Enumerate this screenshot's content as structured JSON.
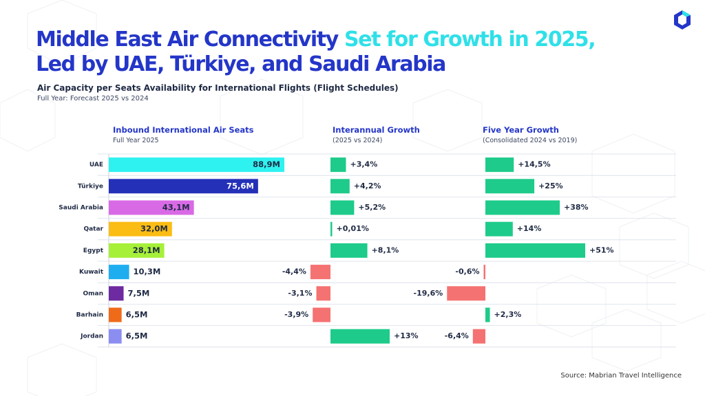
{
  "header": {
    "title_part1": "Middle East Air Connectivity ",
    "title_part2": "Set for Growth in 2025,",
    "title_line2": "Led by UAE, Türkiye, and Saudi Arabia",
    "subtitle": "Air Capacity per Seats Availability for International Flights (Flight Schedules)",
    "subtitle2": "Full Year: Forecast 2025 vs 2024"
  },
  "columns": {
    "seats": {
      "title": "Inbound International Air Seats",
      "sub": "Full Year 2025"
    },
    "interannual": {
      "title": "Interannual Growth",
      "sub": "(2025 vs 2024)"
    },
    "five_year": {
      "title": "Five Year Growth",
      "sub": "(Consolidated 2024 vs 2019)"
    }
  },
  "source": "Source: Mabrian Travel Intelligence",
  "colors": {
    "title_blue": "#2436c8",
    "title_cyan": "#2fe0e8",
    "positive": "#1ecb8a",
    "negative": "#f57272"
  },
  "chart_data": {
    "type": "bar",
    "categories": [
      "UAE",
      "Türkiye",
      "Saudi Arabia",
      "Qatar",
      "Egypt",
      "Kuwait",
      "Oman",
      "Barhain",
      "Jordan"
    ],
    "series": [
      {
        "name": "Inbound International Air Seats (M)",
        "values": [
          88.9,
          75.6,
          43.1,
          32.0,
          28.1,
          10.3,
          7.5,
          6.5,
          6.5
        ],
        "labels": [
          "88,9M",
          "75,6M",
          "43,1M",
          "32,0M",
          "28,1M",
          "10,3M",
          "7,5M",
          "6,5M",
          "6,5M"
        ],
        "colors": [
          "#2ef2f0",
          "#2430b8",
          "#d96ae6",
          "#fbbd14",
          "#a6f03a",
          "#1eaef0",
          "#6e2aa0",
          "#ef6b1a",
          "#8b8ef0"
        ]
      },
      {
        "name": "Interannual Growth (%)",
        "values": [
          3.4,
          4.2,
          5.2,
          0.01,
          8.1,
          -4.4,
          -3.1,
          -3.9,
          13
        ],
        "labels": [
          "+3,4%",
          "+4,2%",
          "+5,2%",
          "+0,01%",
          "+8,1%",
          "-4,4%",
          "-3,1%",
          "-3,9%",
          "+13%"
        ]
      },
      {
        "name": "Five Year Growth (%)",
        "values": [
          14.5,
          25,
          38,
          14,
          51,
          -0.6,
          -19.6,
          2.3,
          -6.4
        ],
        "labels": [
          "+14,5%",
          "+25%",
          "+38%",
          "+14%",
          "+51%",
          "-0,6%",
          "-19,6%",
          "+2,3%",
          "-6,4%"
        ]
      }
    ],
    "title": "Air Capacity per Seats Availability for International Flights (Flight Schedules)",
    "xlabel": "",
    "ylabel": ""
  }
}
